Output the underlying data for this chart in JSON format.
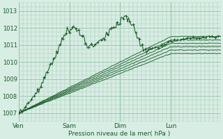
{
  "title": "",
  "xlabel": "Pression niveau de la mer( hPa )",
  "bg_color": "#d8ede4",
  "grid_color": "#9fc8b2",
  "line_color": "#1a5c2a",
  "ylim": [
    1006.5,
    1013.5
  ],
  "yticks": [
    1007,
    1008,
    1009,
    1010,
    1011,
    1012,
    1013
  ],
  "day_labels": [
    "Ven",
    "Sam",
    "Dim",
    "Lun"
  ],
  "day_positions": [
    0,
    48,
    96,
    144
  ],
  "total_points": 192,
  "xtick_minor_step": 4,
  "ytick_minor_step": 0.25,
  "main_waypoints": [
    [
      0,
      1007.0
    ],
    [
      12,
      1007.8
    ],
    [
      20,
      1008.5
    ],
    [
      28,
      1009.5
    ],
    [
      36,
      1010.5
    ],
    [
      42,
      1011.5
    ],
    [
      48,
      1011.9
    ],
    [
      52,
      1012.1
    ],
    [
      56,
      1011.8
    ],
    [
      60,
      1011.5
    ],
    [
      64,
      1011.1
    ],
    [
      68,
      1010.9
    ],
    [
      72,
      1011.0
    ],
    [
      76,
      1011.2
    ],
    [
      80,
      1011.3
    ],
    [
      84,
      1011.6
    ],
    [
      88,
      1011.9
    ],
    [
      92,
      1012.1
    ],
    [
      96,
      1012.3
    ],
    [
      100,
      1012.7
    ],
    [
      104,
      1012.5
    ],
    [
      108,
      1012.1
    ],
    [
      112,
      1011.5
    ],
    [
      116,
      1011.0
    ],
    [
      120,
      1010.7
    ],
    [
      128,
      1010.8
    ],
    [
      136,
      1011.0
    ],
    [
      144,
      1011.2
    ],
    [
      160,
      1011.4
    ],
    [
      191,
      1011.5
    ]
  ],
  "ensemble_lines": [
    [
      [
        0,
        1007.0
      ],
      [
        144,
        1011.5
      ],
      [
        191,
        1011.5
      ]
    ],
    [
      [
        0,
        1007.0
      ],
      [
        144,
        1011.3
      ],
      [
        191,
        1011.3
      ]
    ],
    [
      [
        0,
        1007.0
      ],
      [
        144,
        1011.1
      ],
      [
        191,
        1011.1
      ]
    ],
    [
      [
        0,
        1007.0
      ],
      [
        144,
        1010.9
      ],
      [
        191,
        1010.9
      ]
    ],
    [
      [
        0,
        1007.0
      ],
      [
        144,
        1010.7
      ],
      [
        191,
        1010.7
      ]
    ],
    [
      [
        0,
        1007.0
      ],
      [
        144,
        1010.5
      ],
      [
        191,
        1010.5
      ]
    ]
  ]
}
